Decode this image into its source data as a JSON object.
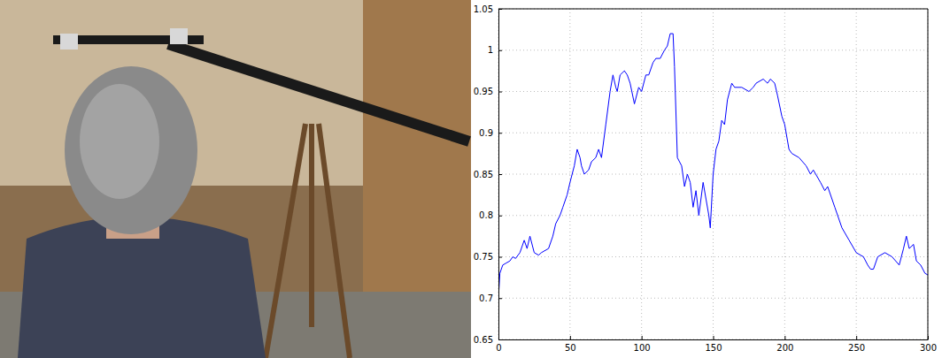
{
  "chart_data": {
    "type": "line",
    "x": [
      0,
      1,
      3,
      5,
      8,
      10,
      12,
      15,
      18,
      20,
      22,
      25,
      28,
      30,
      35,
      38,
      40,
      43,
      45,
      48,
      50,
      53,
      55,
      57,
      58,
      60,
      63,
      65,
      68,
      70,
      72,
      75,
      78,
      80,
      82,
      83,
      85,
      88,
      90,
      92,
      95,
      98,
      100,
      103,
      105,
      108,
      110,
      113,
      116,
      118,
      120,
      122,
      123,
      125,
      128,
      130,
      132,
      134,
      136,
      138,
      140,
      143,
      145,
      147,
      148,
      150,
      152,
      154,
      156,
      158,
      160,
      163,
      165,
      170,
      175,
      178,
      180,
      185,
      188,
      190,
      193,
      195,
      198,
      200,
      203,
      205,
      210,
      215,
      218,
      220,
      225,
      228,
      230,
      235,
      240,
      245,
      250,
      255,
      258,
      260,
      262,
      265,
      270,
      275,
      280,
      283,
      285,
      287,
      290,
      292,
      295,
      298,
      300
    ],
    "series": [
      {
        "color": "#0000ff",
        "values": [
          0.7,
          0.73,
          0.74,
          0.742,
          0.745,
          0.75,
          0.748,
          0.755,
          0.77,
          0.76,
          0.775,
          0.755,
          0.752,
          0.755,
          0.76,
          0.775,
          0.79,
          0.8,
          0.81,
          0.825,
          0.84,
          0.86,
          0.88,
          0.87,
          0.86,
          0.85,
          0.855,
          0.865,
          0.87,
          0.88,
          0.87,
          0.91,
          0.95,
          0.97,
          0.955,
          0.95,
          0.97,
          0.975,
          0.97,
          0.96,
          0.935,
          0.955,
          0.95,
          0.97,
          0.97,
          0.985,
          0.99,
          0.99,
          1.0,
          1.005,
          1.02,
          1.02,
          0.98,
          0.87,
          0.86,
          0.835,
          0.85,
          0.84,
          0.81,
          0.83,
          0.8,
          0.84,
          0.82,
          0.8,
          0.785,
          0.85,
          0.88,
          0.89,
          0.915,
          0.91,
          0.94,
          0.96,
          0.955,
          0.955,
          0.95,
          0.955,
          0.96,
          0.965,
          0.96,
          0.965,
          0.96,
          0.945,
          0.92,
          0.91,
          0.88,
          0.875,
          0.87,
          0.86,
          0.85,
          0.855,
          0.84,
          0.83,
          0.835,
          0.81,
          0.785,
          0.77,
          0.755,
          0.75,
          0.74,
          0.735,
          0.735,
          0.75,
          0.755,
          0.75,
          0.74,
          0.76,
          0.775,
          0.76,
          0.765,
          0.745,
          0.74,
          0.73,
          0.728
        ]
      }
    ],
    "xlim": [
      0,
      300
    ],
    "ylim": [
      0.65,
      1.05
    ],
    "xticks": [
      0,
      50,
      100,
      150,
      200,
      250,
      300
    ],
    "yticks": [
      0.65,
      0.7,
      0.75,
      0.8,
      0.85,
      0.9,
      0.95,
      1,
      1.05
    ],
    "grid": true
  }
}
